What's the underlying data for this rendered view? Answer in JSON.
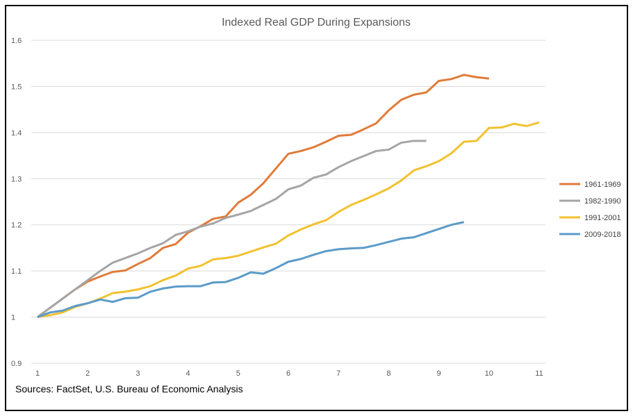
{
  "chart_data": {
    "type": "line",
    "title": "Indexed Real GDP During Expansions",
    "xlabel": "",
    "ylabel": "",
    "xlim": [
      1,
      11
    ],
    "ylim": [
      0.9,
      1.6
    ],
    "x_ticks": [
      "1",
      "2",
      "3",
      "4",
      "5",
      "6",
      "7",
      "8",
      "9",
      "10",
      "11"
    ],
    "y_ticks": [
      "0.9",
      "1",
      "1.1",
      "1.2",
      "1.3",
      "1.4",
      "1.5",
      "1.6"
    ],
    "grid": true,
    "legend_position": "right",
    "x_step": 0.25,
    "series": [
      {
        "name": "1961-1969",
        "color": "#E07B39",
        "values": [
          1,
          1.02,
          1.04,
          1.06,
          1.077,
          1.088,
          1.098,
          1.101,
          1.115,
          1.128,
          1.15,
          1.158,
          1.183,
          1.197,
          1.213,
          1.218,
          1.248,
          1.265,
          1.29,
          1.322,
          1.354,
          1.36,
          1.368,
          1.38,
          1.393,
          1.395,
          1.407,
          1.42,
          1.448,
          1.471,
          1.482,
          1.487,
          1.512,
          1.516,
          1.525,
          1.52,
          1.517
        ]
      },
      {
        "name": "1982-1990",
        "color": "#A5A5A5",
        "values": [
          1,
          1.02,
          1.04,
          1.06,
          1.08,
          1.1,
          1.118,
          1.128,
          1.138,
          1.15,
          1.16,
          1.178,
          1.186,
          1.196,
          1.203,
          1.215,
          1.222,
          1.23,
          1.243,
          1.256,
          1.277,
          1.285,
          1.302,
          1.309,
          1.325,
          1.338,
          1.349,
          1.36,
          1.363,
          1.378,
          1.382,
          1.382
        ]
      },
      {
        "name": "1991-2001",
        "color": "#F2C12E",
        "values": [
          1,
          1.004,
          1.01,
          1.022,
          1.03,
          1.04,
          1.052,
          1.055,
          1.06,
          1.067,
          1.08,
          1.09,
          1.105,
          1.111,
          1.125,
          1.128,
          1.133,
          1.142,
          1.151,
          1.159,
          1.177,
          1.19,
          1.201,
          1.21,
          1.228,
          1.243,
          1.254,
          1.266,
          1.279,
          1.296,
          1.318,
          1.327,
          1.338,
          1.355,
          1.38,
          1.382,
          1.41,
          1.411,
          1.419,
          1.414,
          1.422
        ]
      },
      {
        "name": "2009-2018",
        "color": "#5B9BC8",
        "values": [
          1,
          1.01,
          1.014,
          1.024,
          1.03,
          1.038,
          1.033,
          1.041,
          1.042,
          1.055,
          1.062,
          1.066,
          1.067,
          1.067,
          1.075,
          1.076,
          1.085,
          1.097,
          1.094,
          1.106,
          1.12,
          1.126,
          1.135,
          1.143,
          1.147,
          1.149,
          1.15,
          1.156,
          1.163,
          1.17,
          1.173,
          1.182,
          1.191,
          1.2,
          1.206
        ]
      }
    ]
  },
  "source": "Sources: FactSet, U.S. Bureau of Economic Analysis"
}
